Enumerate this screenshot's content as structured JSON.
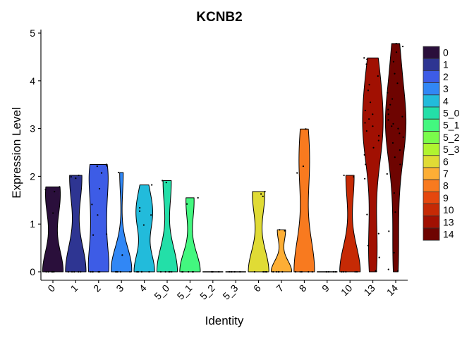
{
  "chart_data": {
    "type": "violin",
    "title": "KCNB2",
    "xlabel": "Identity",
    "ylabel": "Expression Level",
    "ylim": [
      0,
      5
    ],
    "yticks": [
      "0",
      "1",
      "2",
      "3",
      "4",
      "5"
    ],
    "grid": false,
    "legend_position": "right",
    "categories": [
      "0",
      "1",
      "2",
      "3",
      "4",
      "5_0",
      "5_1",
      "5_2",
      "5_3",
      "6",
      "7",
      "8",
      "9",
      "10",
      "13",
      "14"
    ],
    "colors": [
      "#2A0F3B",
      "#2E3592",
      "#3D5CE6",
      "#3187F5",
      "#22BBDB",
      "#23DFA8",
      "#43F77F",
      "#7AFC4B",
      "#B0F430",
      "#E0DB35",
      "#FDAE35",
      "#F87A1F",
      "#E5470E",
      "#C62A05",
      "#A11002",
      "#6E0401"
    ],
    "series": [
      {
        "identity": "0",
        "max": 1.78,
        "points": [
          0,
          0,
          0,
          0,
          0,
          1.23,
          1.72,
          1.78,
          1.68
        ]
      },
      {
        "identity": "1",
        "max": 2.02,
        "points": [
          0,
          0,
          0,
          0,
          0,
          1.96,
          1.99,
          2.02
        ]
      },
      {
        "identity": "2",
        "max": 2.25,
        "points": [
          0,
          0,
          0,
          0,
          0,
          2.25,
          2.22,
          1.41,
          1.19,
          0.79,
          0.77,
          2.21,
          1.74,
          2.07
        ]
      },
      {
        "identity": "3",
        "max": 2.08,
        "points": [
          0,
          0,
          0,
          0,
          0,
          0.35,
          2.08
        ]
      },
      {
        "identity": "4",
        "max": 1.82,
        "points": [
          0,
          0,
          0,
          0,
          0,
          1.82,
          1.34,
          1.19,
          0.98,
          1.27
        ]
      },
      {
        "identity": "5_0",
        "max": 1.91,
        "points": [
          0,
          0,
          0,
          0,
          0,
          1.91,
          1.87
        ]
      },
      {
        "identity": "5_1",
        "max": 1.55,
        "points": [
          0,
          0,
          0,
          0,
          0,
          1.55,
          1.42
        ]
      },
      {
        "identity": "5_2",
        "max": 0,
        "points": [
          0,
          0,
          0,
          0,
          0
        ]
      },
      {
        "identity": "5_3",
        "max": 0,
        "points": [
          0,
          0,
          0,
          0,
          0
        ]
      },
      {
        "identity": "6",
        "max": 1.68,
        "points": [
          0,
          0,
          0,
          0,
          0,
          1.68,
          1.58,
          1.63
        ]
      },
      {
        "identity": "7",
        "max": 0.88,
        "points": [
          0,
          0,
          0,
          0,
          0,
          0.88,
          0.86
        ]
      },
      {
        "identity": "8",
        "max": 2.99,
        "points": [
          0,
          0,
          0,
          0,
          0,
          2.99,
          2.21,
          2.07
        ]
      },
      {
        "identity": "9",
        "max": 0,
        "points": [
          0,
          0,
          0,
          0,
          0
        ]
      },
      {
        "identity": "10",
        "max": 2.02,
        "points": [
          0,
          0,
          0,
          0,
          0,
          2.02,
          1.99
        ]
      },
      {
        "identity": "13",
        "max": 4.48,
        "points": [
          0.01,
          0.02,
          0.3,
          0.55,
          0.8,
          1.2,
          1.95,
          2.25,
          2.45,
          2.6,
          2.75,
          2.85,
          2.95,
          3.05,
          3.12,
          3.2,
          3.3,
          3.38,
          3.55,
          3.8,
          3.92,
          4.1,
          4.35,
          4.45,
          4.48
        ]
      },
      {
        "identity": "14",
        "max": 4.78,
        "points": [
          0.02,
          0.05,
          0.4,
          0.85,
          1.25,
          1.65,
          2.05,
          2.25,
          2.4,
          2.55,
          2.7,
          2.82,
          2.9,
          3.0,
          3.05,
          3.1,
          3.18,
          3.25,
          3.3,
          3.4,
          3.5,
          3.62,
          3.75,
          3.95,
          4.15,
          4.4,
          4.6,
          4.72,
          4.78
        ]
      }
    ]
  }
}
